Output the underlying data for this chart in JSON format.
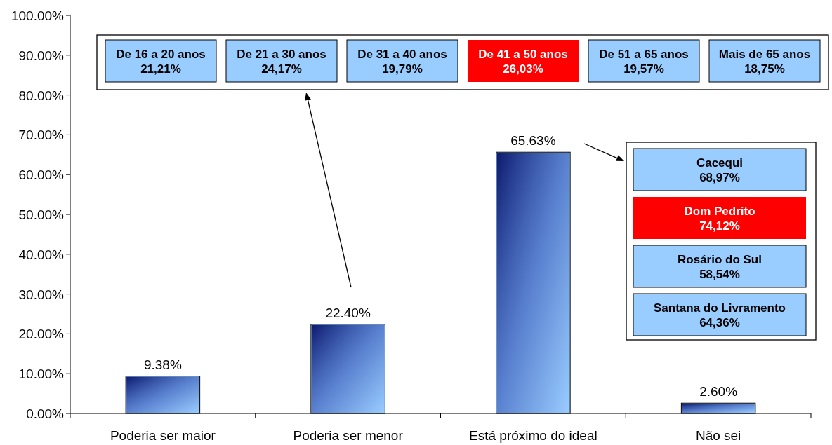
{
  "chart_data": {
    "type": "bar",
    "categories": [
      "Poderia ser maior",
      "Poderia ser menor",
      "Está próximo do ideal",
      "Não sei"
    ],
    "values": [
      9.38,
      22.4,
      65.63,
      2.6
    ],
    "value_labels": [
      "9.38%",
      "22.40%",
      "65.63%",
      "2.60%"
    ],
    "color": "#99ccff",
    "ylim": [
      0,
      100
    ],
    "yticks": [
      {
        "value": 0,
        "label": "0.00%"
      },
      {
        "value": 10,
        "label": "10.00%"
      },
      {
        "value": 20,
        "label": "20.00%"
      },
      {
        "value": 30,
        "label": "30.00%"
      },
      {
        "value": 40,
        "label": "40.00%"
      },
      {
        "value": 50,
        "label": "50.00%"
      },
      {
        "value": 60,
        "label": "60.00%"
      },
      {
        "value": 70,
        "label": "70.00%"
      },
      {
        "value": 80,
        "label": "80.00%"
      },
      {
        "value": 90,
        "label": "90.00%"
      },
      {
        "value": 100,
        "label": "100.00%"
      }
    ],
    "annotations": [
      "De 16 a 20 anos\n21,21%",
      "De 21 a 30 anos\n24,17%",
      "De 31 a 40 anos\n19,79%",
      "De 41 a 50 anos\n26,03%",
      "De 51 a 65 anos\n19,57%",
      "Mais de 65 anos\n18,75%",
      "Cacequi\n68,97%",
      "Dom Pedrito\n74,12%",
      "Rosário do Sul\n58,54%",
      "Santana do Livramento\n64,36%"
    ]
  }
}
